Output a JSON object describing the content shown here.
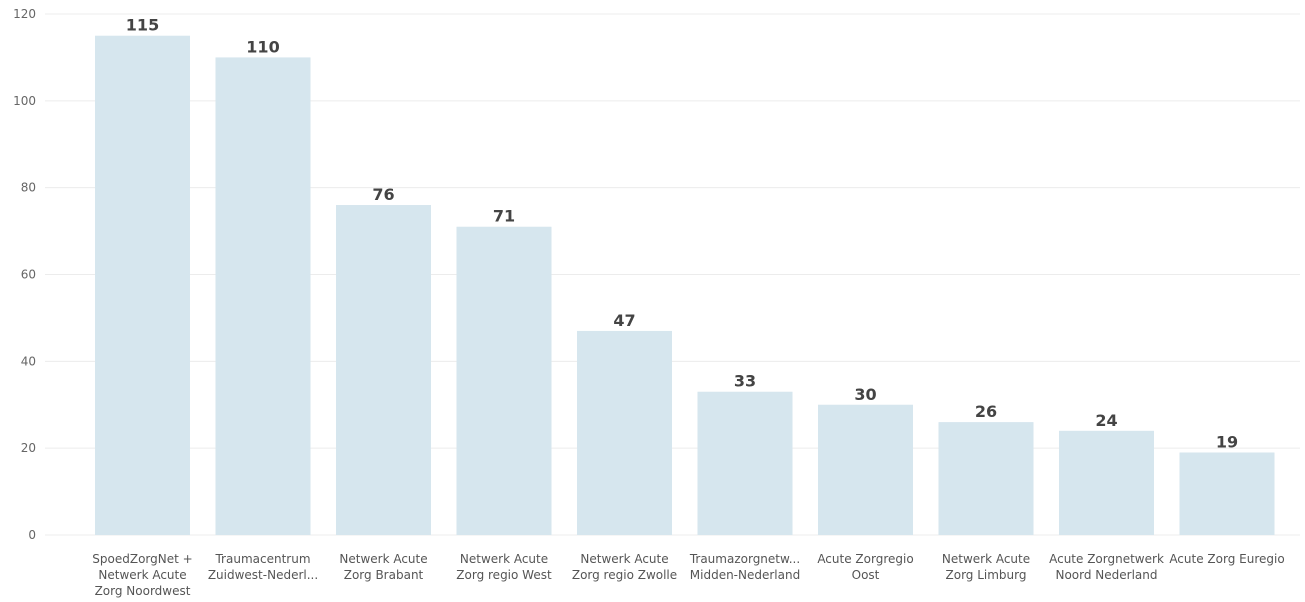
{
  "chart_data": {
    "type": "bar",
    "title": "",
    "xlabel": "",
    "ylabel": "",
    "ylim": [
      0,
      120
    ],
    "yticks": [
      0,
      20,
      40,
      60,
      80,
      100,
      120
    ],
    "grid": true,
    "bar_color": "#d6e6ee",
    "categories": [
      "SpoedZorgNet + Netwerk Acute Zorg Noordwest",
      "Traumacentrum Zuidwest-Nederl...",
      "Netwerk Acute Zorg Brabant",
      "Netwerk Acute Zorg regio West",
      "Netwerk Acute Zorg regio Zwolle",
      "Traumazorgnetw... Midden-Nederland",
      "Acute Zorgregio Oost",
      "Netwerk Acute Zorg Limburg",
      "Acute Zorgnetwerk Noord Nederland",
      "Acute Zorg Euregio"
    ],
    "category_lines": [
      [
        "SpoedZorgNet +",
        "Netwerk Acute",
        "Zorg Noordwest"
      ],
      [
        "Traumacentrum",
        "Zuidwest-Nederl..."
      ],
      [
        "Netwerk Acute",
        "Zorg Brabant"
      ],
      [
        "Netwerk Acute",
        "Zorg regio West"
      ],
      [
        "Netwerk Acute",
        "Zorg regio Zwolle"
      ],
      [
        "Traumazorgnetw...",
        "Midden-Nederland"
      ],
      [
        "Acute Zorgregio",
        "Oost"
      ],
      [
        "Netwerk Acute",
        "Zorg Limburg"
      ],
      [
        "Acute Zorgnetwerk",
        "Noord Nederland"
      ],
      [
        "Acute Zorg Euregio"
      ]
    ],
    "values": [
      115,
      110,
      76,
      71,
      47,
      33,
      30,
      26,
      24,
      19
    ]
  }
}
